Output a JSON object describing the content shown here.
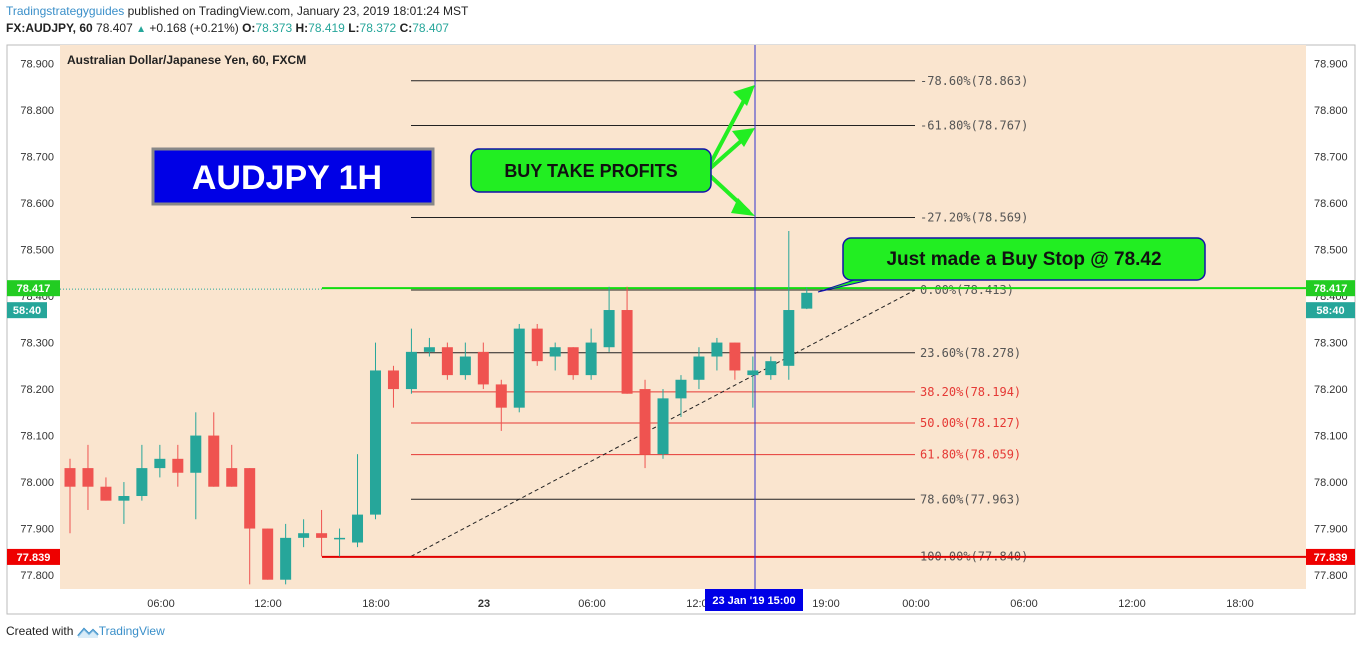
{
  "header": {
    "publisher": "Tradingstrategyguides",
    "published_text": " published on TradingView.com, January 23, 2019 18:01:24 MST",
    "symbol": "FX:AUDJPY, 60",
    "last": "78.407",
    "change": "+0.168 (+0.21%)",
    "o_label": "O:",
    "o": "78.373",
    "h_label": "H:",
    "h": "78.419",
    "l_label": "L:",
    "l": "78.372",
    "c_label": "C:",
    "c": "78.407"
  },
  "footer": {
    "created_with": "Created with",
    "brand": "TradingView"
  },
  "colors": {
    "background": "#fae5cf",
    "up": "#26a69a",
    "down": "#ef5350",
    "fib_black": "#222222",
    "fib_red": "#e53935",
    "label_box_bg": "#0000e6",
    "callout_bg": "#22ee22",
    "crosshair": "#3333cc"
  },
  "chart_data": {
    "type": "candlestick",
    "title": "Australian Dollar/Japanese Yen, 60, FXCM",
    "ylim": [
      77.77,
      78.94
    ],
    "y_ticks": [
      "78.900",
      "78.800",
      "78.700",
      "78.600",
      "78.500",
      "78.400",
      "78.300",
      "78.200",
      "78.100",
      "78.000",
      "77.900",
      "77.800"
    ],
    "x_ticks": [
      "06:00",
      "12:00",
      "18:00",
      "23",
      "06:00",
      "12:00",
      "19:00",
      "00:00",
      "06:00",
      "12:00",
      "18:00"
    ],
    "candles": [
      {
        "o": 78.03,
        "h": 78.05,
        "l": 77.89,
        "c": 77.99
      },
      {
        "o": 78.03,
        "h": 78.08,
        "l": 77.94,
        "c": 77.99
      },
      {
        "o": 77.99,
        "h": 78.01,
        "l": 77.96,
        "c": 77.96
      },
      {
        "o": 77.96,
        "h": 78.0,
        "l": 77.91,
        "c": 77.97
      },
      {
        "o": 77.97,
        "h": 78.08,
        "l": 77.96,
        "c": 78.03
      },
      {
        "o": 78.03,
        "h": 78.08,
        "l": 78.01,
        "c": 78.05
      },
      {
        "o": 78.05,
        "h": 78.08,
        "l": 77.99,
        "c": 78.02
      },
      {
        "o": 78.02,
        "h": 78.15,
        "l": 77.92,
        "c": 78.1
      },
      {
        "o": 78.1,
        "h": 78.15,
        "l": 77.99,
        "c": 77.99
      },
      {
        "o": 78.03,
        "h": 78.08,
        "l": 77.99,
        "c": 77.99
      },
      {
        "o": 78.03,
        "h": 78.03,
        "l": 77.78,
        "c": 77.9
      },
      {
        "o": 77.9,
        "h": 77.9,
        "l": 77.79,
        "c": 77.79
      },
      {
        "o": 77.79,
        "h": 77.91,
        "l": 77.78,
        "c": 77.88
      },
      {
        "o": 77.88,
        "h": 77.92,
        "l": 77.86,
        "c": 77.89
      },
      {
        "o": 77.89,
        "h": 77.94,
        "l": 77.84,
        "c": 77.88
      },
      {
        "o": 77.88,
        "h": 77.9,
        "l": 77.84,
        "c": 77.88
      },
      {
        "o": 77.87,
        "h": 78.06,
        "l": 77.86,
        "c": 77.93
      },
      {
        "o": 77.93,
        "h": 78.3,
        "l": 77.92,
        "c": 78.24
      },
      {
        "o": 78.24,
        "h": 78.25,
        "l": 78.16,
        "c": 78.2
      },
      {
        "o": 78.2,
        "h": 78.33,
        "l": 78.19,
        "c": 78.28
      },
      {
        "o": 78.28,
        "h": 78.31,
        "l": 78.27,
        "c": 78.29
      },
      {
        "o": 78.29,
        "h": 78.3,
        "l": 78.22,
        "c": 78.23
      },
      {
        "o": 78.23,
        "h": 78.3,
        "l": 78.22,
        "c": 78.27
      },
      {
        "o": 78.28,
        "h": 78.3,
        "l": 78.2,
        "c": 78.21
      },
      {
        "o": 78.21,
        "h": 78.22,
        "l": 78.11,
        "c": 78.16
      },
      {
        "o": 78.16,
        "h": 78.34,
        "l": 78.15,
        "c": 78.33
      },
      {
        "o": 78.33,
        "h": 78.34,
        "l": 78.25,
        "c": 78.26
      },
      {
        "o": 78.27,
        "h": 78.3,
        "l": 78.24,
        "c": 78.29
      },
      {
        "o": 78.29,
        "h": 78.29,
        "l": 78.22,
        "c": 78.23
      },
      {
        "o": 78.23,
        "h": 78.33,
        "l": 78.22,
        "c": 78.3
      },
      {
        "o": 78.29,
        "h": 78.42,
        "l": 78.28,
        "c": 78.37
      },
      {
        "o": 78.37,
        "h": 78.42,
        "l": 78.19,
        "c": 78.19
      },
      {
        "o": 78.2,
        "h": 78.22,
        "l": 78.03,
        "c": 78.06
      },
      {
        "o": 78.06,
        "h": 78.2,
        "l": 78.05,
        "c": 78.18
      },
      {
        "o": 78.18,
        "h": 78.23,
        "l": 78.14,
        "c": 78.22
      },
      {
        "o": 78.22,
        "h": 78.29,
        "l": 78.2,
        "c": 78.27
      },
      {
        "o": 78.27,
        "h": 78.31,
        "l": 78.24,
        "c": 78.3
      },
      {
        "o": 78.3,
        "h": 78.3,
        "l": 78.22,
        "c": 78.24
      },
      {
        "o": 78.23,
        "h": 78.27,
        "l": 78.16,
        "c": 78.24
      },
      {
        "o": 78.23,
        "h": 78.27,
        "l": 78.22,
        "c": 78.26
      },
      {
        "o": 78.25,
        "h": 78.54,
        "l": 78.22,
        "c": 78.37
      },
      {
        "o": 78.373,
        "h": 78.419,
        "l": 78.372,
        "c": 78.407
      }
    ],
    "fib_levels": [
      {
        "label": "-78.60%(78.863)",
        "value": 78.863,
        "color": "black"
      },
      {
        "label": "-61.80%(78.767)",
        "value": 78.767,
        "color": "black"
      },
      {
        "label": "-27.20%(78.569)",
        "value": 78.569,
        "color": "black"
      },
      {
        "label": "0.00%(78.413)",
        "value": 78.413,
        "color": "black"
      },
      {
        "label": "23.60%(78.278)",
        "value": 78.278,
        "color": "black"
      },
      {
        "label": "38.20%(78.194)",
        "value": 78.194,
        "color": "red"
      },
      {
        "label": "50.00%(78.127)",
        "value": 78.127,
        "color": "red"
      },
      {
        "label": "61.80%(78.059)",
        "value": 78.059,
        "color": "red"
      },
      {
        "label": "78.60%(77.963)",
        "value": 77.963,
        "color": "black"
      },
      {
        "label": "100.00%(77.840)",
        "value": 77.84,
        "color": "black"
      }
    ],
    "price_line": {
      "value": 78.417,
      "label": "78.417"
    },
    "low_line": {
      "value": 77.839,
      "label": "77.839"
    },
    "countdown": "58:40",
    "crosshair_label": "23 Jan '19   15:00",
    "annotations": {
      "title_box": "AUDJPY 1H",
      "take_profits": "BUY TAKE PROFITS",
      "buy_stop": "Just made a Buy Stop @ 78.42"
    }
  }
}
